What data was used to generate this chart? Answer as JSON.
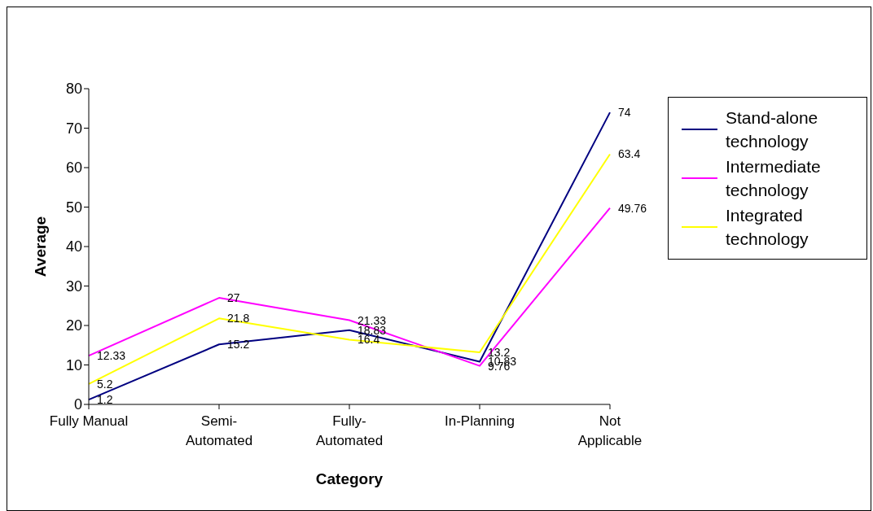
{
  "chart_data": {
    "type": "line",
    "xlabel": "Category",
    "ylabel": "Average",
    "categories": [
      "Fully Manual",
      "Semi-Automated",
      "Fully-Automated",
      "In-Planning",
      "Not Applicable"
    ],
    "series": [
      {
        "name": "Stand-alone technology",
        "color": "#000080",
        "values": [
          1.2,
          15.2,
          18.83,
          10.83,
          74
        ]
      },
      {
        "name": "Intermediate technology",
        "color": "#ff00ff",
        "values": [
          12.33,
          27,
          21.33,
          9.76,
          49.76
        ]
      },
      {
        "name": "Integrated technology",
        "color": "#ffff00",
        "values": [
          5.2,
          21.8,
          16.4,
          13.2,
          63.4
        ]
      }
    ],
    "ylim": [
      0,
      80
    ],
    "yticks": [
      0,
      10,
      20,
      30,
      40,
      50,
      60,
      70,
      80
    ],
    "grid": false,
    "legend": "right",
    "data_labels": true,
    "marker": "none",
    "line_style": "solid"
  }
}
